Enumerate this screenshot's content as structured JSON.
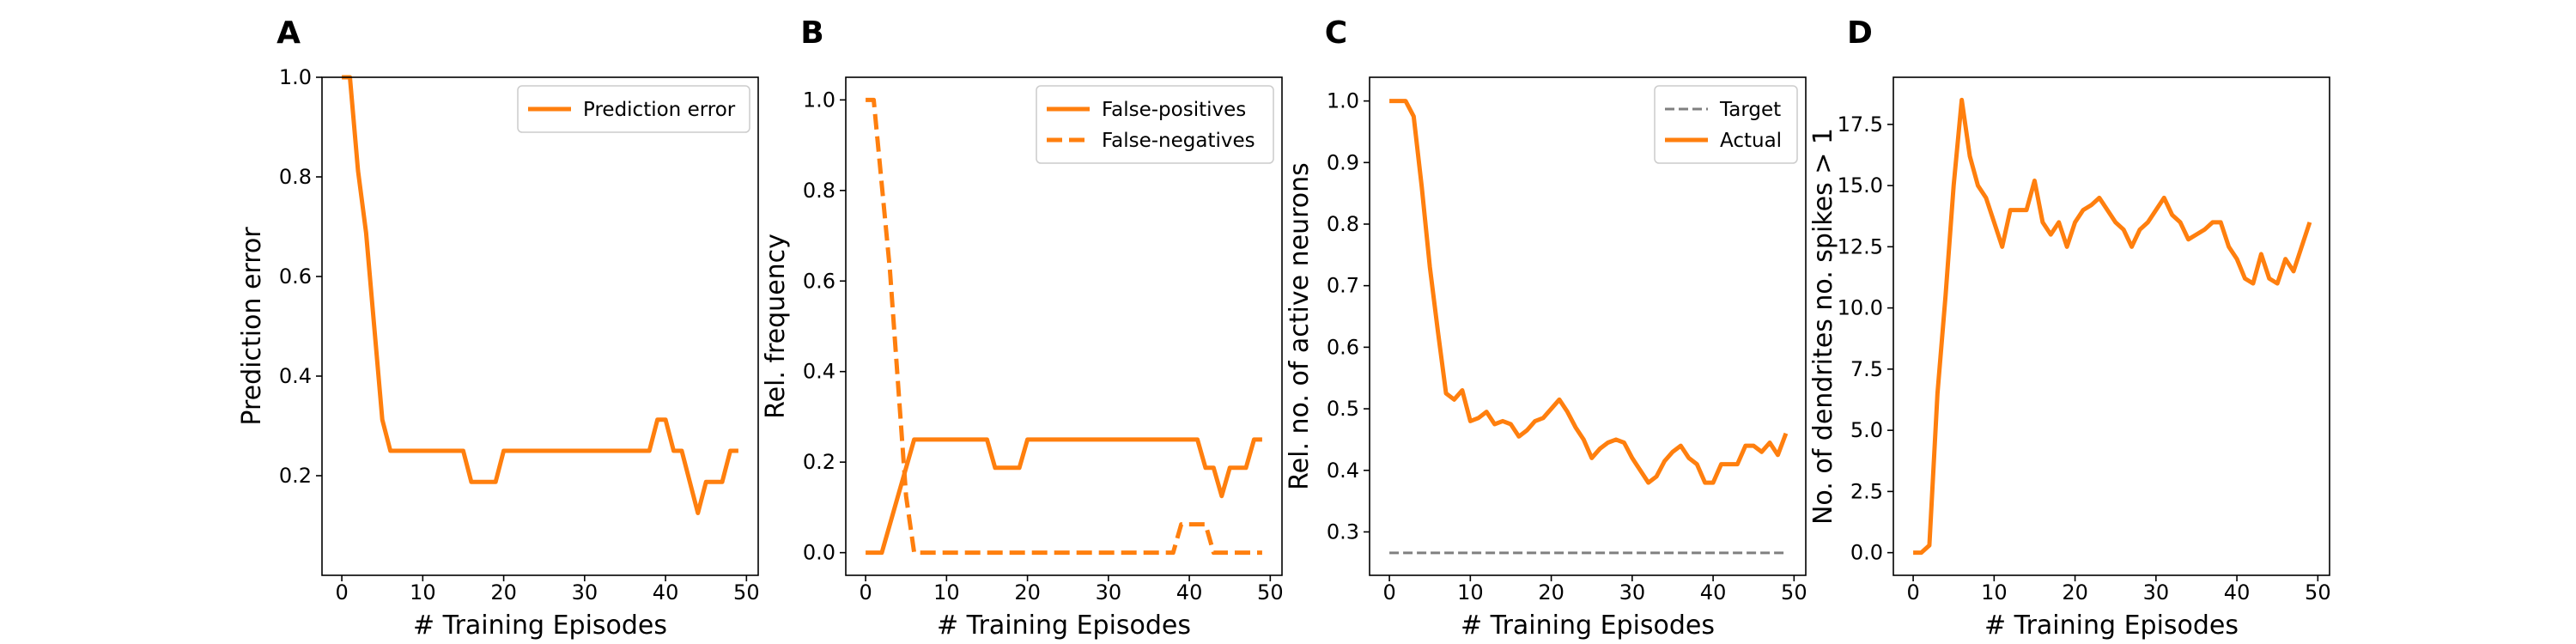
{
  "colors": {
    "orange": "#ff7f0e",
    "target_gray": "#808080"
  },
  "chart_data": [
    {
      "type": "line",
      "panel_label": "A",
      "xlabel": "# Training Episodes",
      "ylabel": "Prediction error",
      "xlim": [
        -2.45,
        51.45
      ],
      "ylim": [
        0.0,
        1.0
      ],
      "x_ticks": [
        0,
        10,
        20,
        30,
        40,
        50
      ],
      "x_tick_labels": [
        "0",
        "10",
        "20",
        "30",
        "40",
        "50"
      ],
      "y_ticks": [
        0.2,
        0.4,
        0.6,
        0.8,
        1.0
      ],
      "y_tick_labels": [
        "0.2",
        "0.4",
        "0.6",
        "0.8",
        "1.0"
      ],
      "legend": "top-right",
      "series": [
        {
          "name": "Prediction error",
          "style": "solid",
          "color": "#ff7f0e",
          "x": [
            0,
            1,
            2,
            3,
            4,
            5,
            6,
            7,
            8,
            9,
            10,
            11,
            12,
            13,
            14,
            15,
            16,
            17,
            18,
            19,
            20,
            21,
            22,
            23,
            24,
            25,
            26,
            27,
            28,
            29,
            30,
            31,
            32,
            33,
            34,
            35,
            36,
            37,
            38,
            39,
            40,
            41,
            42,
            43,
            44,
            45,
            46,
            47,
            48,
            49
          ],
          "y": [
            1.0,
            1.0,
            0.8125,
            0.6875,
            0.5,
            0.3125,
            0.25,
            0.25,
            0.25,
            0.25,
            0.25,
            0.25,
            0.25,
            0.25,
            0.25,
            0.25,
            0.1875,
            0.1875,
            0.1875,
            0.1875,
            0.25,
            0.25,
            0.25,
            0.25,
            0.25,
            0.25,
            0.25,
            0.25,
            0.25,
            0.25,
            0.25,
            0.25,
            0.25,
            0.25,
            0.25,
            0.25,
            0.25,
            0.25,
            0.25,
            0.3125,
            0.3125,
            0.25,
            0.25,
            0.1875,
            0.125,
            0.1875,
            0.1875,
            0.1875,
            0.25,
            0.25
          ]
        }
      ]
    },
    {
      "type": "line",
      "panel_label": "B",
      "xlabel": "# Training Episodes",
      "ylabel": "Rel. frequency",
      "xlim": [
        -2.45,
        51.45
      ],
      "ylim": [
        -0.05,
        1.05
      ],
      "x_ticks": [
        0,
        10,
        20,
        30,
        40,
        50
      ],
      "x_tick_labels": [
        "0",
        "10",
        "20",
        "30",
        "40",
        "50"
      ],
      "y_ticks": [
        0.0,
        0.2,
        0.4,
        0.6,
        0.8,
        1.0
      ],
      "y_tick_labels": [
        "0.0",
        "0.2",
        "0.4",
        "0.6",
        "0.8",
        "1.0"
      ],
      "legend": "top-right",
      "series": [
        {
          "name": "False-positives",
          "style": "solid",
          "color": "#ff7f0e",
          "x": [
            0,
            1,
            2,
            3,
            4,
            5,
            6,
            7,
            8,
            9,
            10,
            11,
            12,
            13,
            14,
            15,
            16,
            17,
            18,
            19,
            20,
            21,
            22,
            23,
            24,
            25,
            26,
            27,
            28,
            29,
            30,
            31,
            32,
            33,
            34,
            35,
            36,
            37,
            38,
            39,
            40,
            41,
            42,
            43,
            44,
            45,
            46,
            47,
            48,
            49
          ],
          "y": [
            0.0,
            0.0,
            0.0,
            0.0625,
            0.125,
            0.1875,
            0.25,
            0.25,
            0.25,
            0.25,
            0.25,
            0.25,
            0.25,
            0.25,
            0.25,
            0.25,
            0.1875,
            0.1875,
            0.1875,
            0.1875,
            0.25,
            0.25,
            0.25,
            0.25,
            0.25,
            0.25,
            0.25,
            0.25,
            0.25,
            0.25,
            0.25,
            0.25,
            0.25,
            0.25,
            0.25,
            0.25,
            0.25,
            0.25,
            0.25,
            0.25,
            0.25,
            0.25,
            0.1875,
            0.1875,
            0.125,
            0.1875,
            0.1875,
            0.1875,
            0.25,
            0.25
          ]
        },
        {
          "name": "False-negatives",
          "style": "dashed",
          "color": "#ff7f0e",
          "x": [
            0,
            1,
            2,
            3,
            4,
            5,
            6,
            7,
            8,
            9,
            10,
            11,
            12,
            13,
            14,
            15,
            16,
            17,
            18,
            19,
            20,
            21,
            22,
            23,
            24,
            25,
            26,
            27,
            28,
            29,
            30,
            31,
            32,
            33,
            34,
            35,
            36,
            37,
            38,
            39,
            40,
            41,
            42,
            43,
            44,
            45,
            46,
            47,
            48,
            49
          ],
          "y": [
            1.0,
            1.0,
            0.8125,
            0.625,
            0.375,
            0.125,
            0.0,
            0.0,
            0.0,
            0.0,
            0.0,
            0.0,
            0.0,
            0.0,
            0.0,
            0.0,
            0.0,
            0.0,
            0.0,
            0.0,
            0.0,
            0.0,
            0.0,
            0.0,
            0.0,
            0.0,
            0.0,
            0.0,
            0.0,
            0.0,
            0.0,
            0.0,
            0.0,
            0.0,
            0.0,
            0.0,
            0.0,
            0.0,
            0.0,
            0.0625,
            0.0625,
            0.0625,
            0.0625,
            0.0,
            0.0,
            0.0,
            0.0,
            0.0,
            0.0,
            0.0
          ]
        }
      ]
    },
    {
      "type": "line",
      "panel_label": "C",
      "xlabel": "# Training Episodes",
      "ylabel": "Rel. no. of active neurons",
      "xlim": [
        -2.45,
        51.45
      ],
      "ylim": [
        0.2295,
        1.0385
      ],
      "x_ticks": [
        0,
        10,
        20,
        30,
        40,
        50
      ],
      "x_tick_labels": [
        "0",
        "10",
        "20",
        "30",
        "40",
        "50"
      ],
      "y_ticks": [
        0.3,
        0.4,
        0.5,
        0.6,
        0.7,
        0.8,
        0.9,
        1.0
      ],
      "y_tick_labels": [
        "0.3",
        "0.4",
        "0.5",
        "0.6",
        "0.7",
        "0.8",
        "0.9",
        "1.0"
      ],
      "legend": "top-right",
      "series": [
        {
          "name": "Target",
          "style": "dashed-thin",
          "color": "#808080",
          "x": [
            0,
            49
          ],
          "y": [
            0.266,
            0.266
          ]
        },
        {
          "name": "Actual",
          "style": "solid",
          "color": "#ff7f0e",
          "x": [
            0,
            1,
            2,
            3,
            4,
            5,
            6,
            7,
            8,
            9,
            10,
            11,
            12,
            13,
            14,
            15,
            16,
            17,
            18,
            19,
            20,
            21,
            22,
            23,
            24,
            25,
            26,
            27,
            28,
            29,
            30,
            31,
            32,
            33,
            34,
            35,
            36,
            37,
            38,
            39,
            40,
            41,
            42,
            43,
            44,
            45,
            46,
            47,
            48,
            49
          ],
          "y": [
            1.0,
            1.0,
            1.0,
            0.975,
            0.86,
            0.73,
            0.625,
            0.525,
            0.515,
            0.53,
            0.48,
            0.485,
            0.495,
            0.475,
            0.48,
            0.475,
            0.455,
            0.465,
            0.48,
            0.485,
            0.5,
            0.515,
            0.495,
            0.47,
            0.45,
            0.42,
            0.435,
            0.445,
            0.45,
            0.445,
            0.42,
            0.4,
            0.38,
            0.39,
            0.415,
            0.43,
            0.44,
            0.42,
            0.41,
            0.38,
            0.38,
            0.41,
            0.41,
            0.41,
            0.44,
            0.44,
            0.43,
            0.445,
            0.425,
            0.46
          ]
        }
      ]
    },
    {
      "type": "line",
      "panel_label": "D",
      "xlabel": "# Training Episodes",
      "ylabel": "No. of dendrites no. spikes > 1",
      "xlim": [
        -2.45,
        51.45
      ],
      "ylim": [
        -0.925,
        19.425
      ],
      "x_ticks": [
        0,
        10,
        20,
        30,
        40,
        50
      ],
      "x_tick_labels": [
        "0",
        "10",
        "20",
        "30",
        "40",
        "50"
      ],
      "y_ticks": [
        0.0,
        2.5,
        5.0,
        7.5,
        10.0,
        12.5,
        15.0,
        17.5
      ],
      "y_tick_labels": [
        "0.0",
        "2.5",
        "5.0",
        "7.5",
        "10.0",
        "12.5",
        "15.0",
        "17.5"
      ],
      "legend": "",
      "series": [
        {
          "name": "",
          "style": "solid",
          "color": "#ff7f0e",
          "x": [
            0,
            1,
            2,
            3,
            4,
            5,
            6,
            7,
            8,
            9,
            10,
            11,
            12,
            13,
            14,
            15,
            16,
            17,
            18,
            19,
            20,
            21,
            22,
            23,
            24,
            25,
            26,
            27,
            28,
            29,
            30,
            31,
            32,
            33,
            34,
            35,
            36,
            37,
            38,
            39,
            40,
            41,
            42,
            43,
            44,
            45,
            46,
            47,
            48,
            49
          ],
          "y": [
            0.0,
            0.0,
            0.3,
            6.5,
            10.5,
            15.0,
            18.5,
            16.2,
            15.0,
            14.5,
            13.5,
            12.5,
            14.0,
            14.0,
            14.0,
            15.2,
            13.5,
            13.0,
            13.5,
            12.5,
            13.5,
            14.0,
            14.2,
            14.5,
            14.0,
            13.5,
            13.2,
            12.5,
            13.2,
            13.5,
            14.0,
            14.5,
            13.8,
            13.5,
            12.8,
            13.0,
            13.2,
            13.5,
            13.5,
            12.5,
            12.0,
            11.2,
            11.0,
            12.2,
            11.2,
            11.0,
            12.0,
            11.5,
            12.5,
            13.5
          ]
        }
      ]
    }
  ]
}
